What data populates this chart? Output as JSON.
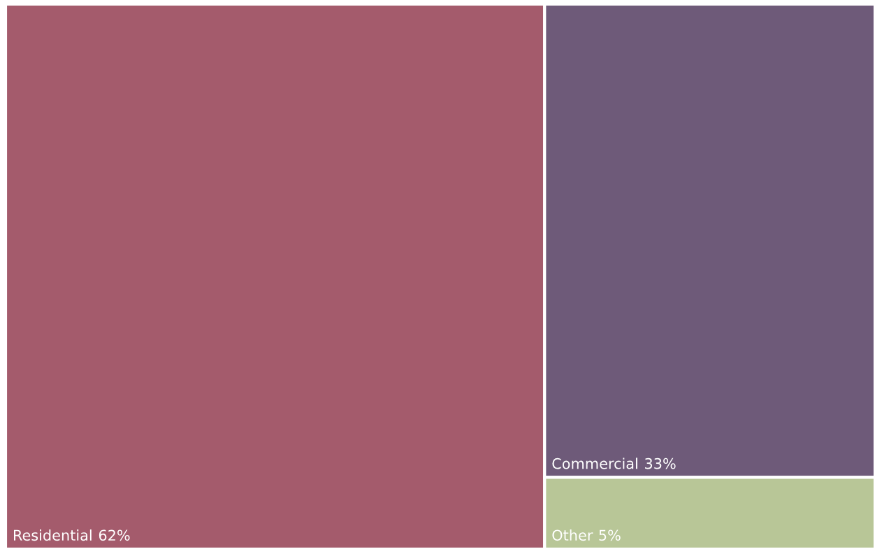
{
  "chart_data": {
    "type": "other",
    "categories": [
      "Residential",
      "Commercial",
      "Other"
    ],
    "values": [
      62,
      33,
      5
    ],
    "value_labels": [
      "62%",
      "33%",
      "5%"
    ],
    "colors": [
      "#a45b6c",
      "#6e5a79",
      "#b8c697"
    ]
  }
}
